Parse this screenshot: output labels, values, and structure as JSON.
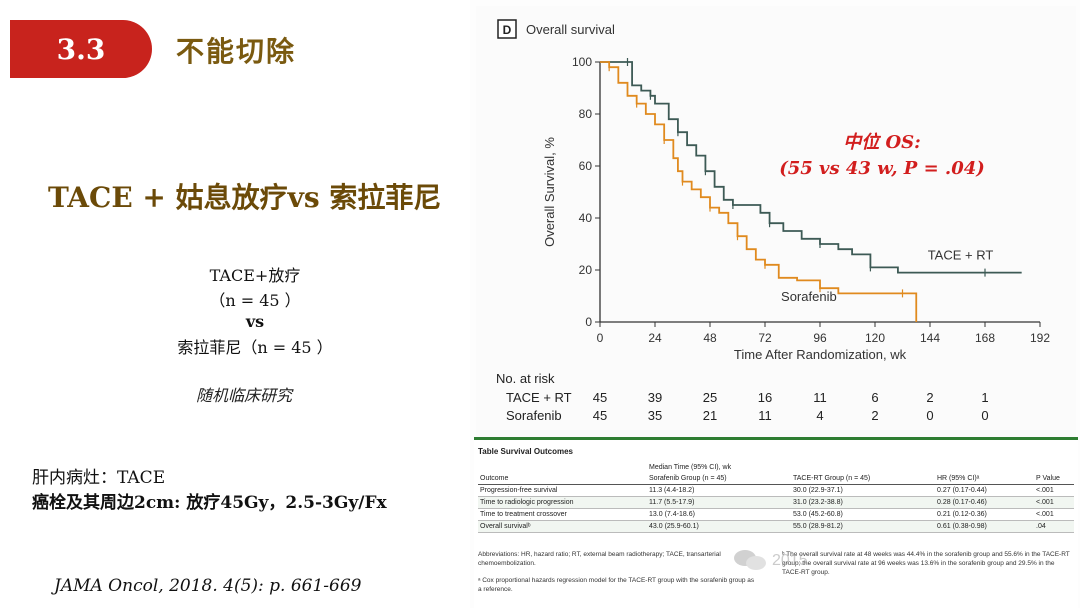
{
  "section": {
    "number": "3.3",
    "title": "不能切除"
  },
  "headline": "TACE + 姑息放疗vs 索拉菲尼",
  "arms": {
    "arm1": "TACE+放疗",
    "arm1_n": "（n = 45 ）",
    "vs": "vs",
    "arm2": "索拉菲尼（n = 45 ）"
  },
  "trial_type": "随机临床研究",
  "notes": [
    "肝内病灶：TACE",
    "癌栓及其周边2cm: 放疗45Gy，2.5-3Gy/Fx"
  ],
  "citation": "JAMA Oncol, 2018. 4(5): p. 661-669",
  "figure": {
    "panel_letter": "D",
    "panel_title": "Overall survival",
    "annotation_line1": "中位 OS:",
    "annotation_line2": "(55 vs 43 w, P = .04)",
    "at_risk_title": "No. at risk",
    "at_risk": [
      {
        "label": "TACE + RT",
        "values": [
          "45",
          "39",
          "25",
          "16",
          "11",
          "6",
          "2",
          "1"
        ]
      },
      {
        "label": "Sorafenib",
        "values": [
          "45",
          "35",
          "21",
          "11",
          "4",
          "2",
          "0",
          "0"
        ]
      }
    ]
  },
  "chart_data": {
    "type": "line",
    "title": "Overall survival",
    "xlabel": "Time After Randomization, wk",
    "ylabel": "Overall Survival, %",
    "xlim": [
      0,
      192
    ],
    "ylim": [
      0,
      100
    ],
    "xticks": [
      0,
      24,
      48,
      72,
      96,
      120,
      144,
      168,
      192
    ],
    "yticks": [
      0,
      20,
      40,
      60,
      80,
      100
    ],
    "series": [
      {
        "name": "TACE + RT",
        "color": "#3d5a55",
        "points": [
          [
            0,
            100
          ],
          [
            12,
            100
          ],
          [
            14,
            91
          ],
          [
            18,
            89
          ],
          [
            22,
            87
          ],
          [
            24,
            84
          ],
          [
            30,
            78
          ],
          [
            34,
            73
          ],
          [
            38,
            68
          ],
          [
            42,
            64
          ],
          [
            46,
            58
          ],
          [
            50,
            52
          ],
          [
            54,
            47
          ],
          [
            58,
            45
          ],
          [
            64,
            45
          ],
          [
            70,
            42
          ],
          [
            74,
            38
          ],
          [
            80,
            35
          ],
          [
            88,
            32
          ],
          [
            96,
            30
          ],
          [
            104,
            28
          ],
          [
            110,
            26
          ],
          [
            118,
            21
          ],
          [
            130,
            19
          ],
          [
            144,
            19
          ],
          [
            168,
            19
          ],
          [
            184,
            19
          ]
        ]
      },
      {
        "name": "Sorafenib",
        "color": "#e08a1e",
        "points": [
          [
            0,
            100
          ],
          [
            4,
            98
          ],
          [
            8,
            92
          ],
          [
            12,
            87
          ],
          [
            16,
            84
          ],
          [
            20,
            80
          ],
          [
            24,
            76
          ],
          [
            28,
            70
          ],
          [
            32,
            63
          ],
          [
            34,
            58
          ],
          [
            36,
            54
          ],
          [
            40,
            51
          ],
          [
            44,
            48
          ],
          [
            48,
            44
          ],
          [
            52,
            42
          ],
          [
            56,
            38
          ],
          [
            60,
            33
          ],
          [
            64,
            28
          ],
          [
            68,
            24
          ],
          [
            72,
            22
          ],
          [
            78,
            17
          ],
          [
            86,
            16
          ],
          [
            96,
            13
          ],
          [
            104,
            11
          ],
          [
            120,
            11
          ],
          [
            132,
            11
          ],
          [
            138,
            0
          ]
        ]
      }
    ]
  },
  "table": {
    "title": "Table   Survival Outcomes",
    "group_header": "Median Time (95% CI), wk",
    "columns": [
      "Outcome",
      "Sorafenib Group (n = 45)",
      "TACE-RT Group (n = 45)",
      "HR (95% CI)ᵃ",
      "P Value"
    ],
    "rows": [
      [
        "Progression-free survival",
        "11.3 (4.4-18.2)",
        "30.0 (22.9-37.1)",
        "0.27 (0.17-0.44)",
        "<.001"
      ],
      [
        "Time to radiologic progression",
        "11.7 (5.5-17.9)",
        "31.0 (23.2-38.8)",
        "0.28 (0.17-0.46)",
        "<.001"
      ],
      [
        "Time to treatment crossover",
        "13.0 (7.4-18.6)",
        "53.0 (45.2-60.8)",
        "0.21 (0.12-0.36)",
        "<.001"
      ],
      [
        "Overall survivalᵇ",
        "43.0 (25.9-60.1)",
        "55.0 (28.9-81.2)",
        "0.61 (0.38-0.98)",
        ".04"
      ]
    ],
    "footnote_abbrev": "Abbreviations: HR, hazard ratio; RT, external beam radiotherapy; TACE, transarterial chemoembolization.",
    "footnote_a": "ᵃ Cox proportional hazards regression model for the TACE-RT group with the sorafenib group as a reference.",
    "footnote_b": "ᵇ The overall survival rate at 48 weeks was 44.4% in the sorafenib group and 55.6% in the TACE-RT group; the overall survival rate at 96 weeks was 13.6% in the sorafenib group and 29.5% in the TACE-RT group."
  },
  "watermark_text": "2015"
}
